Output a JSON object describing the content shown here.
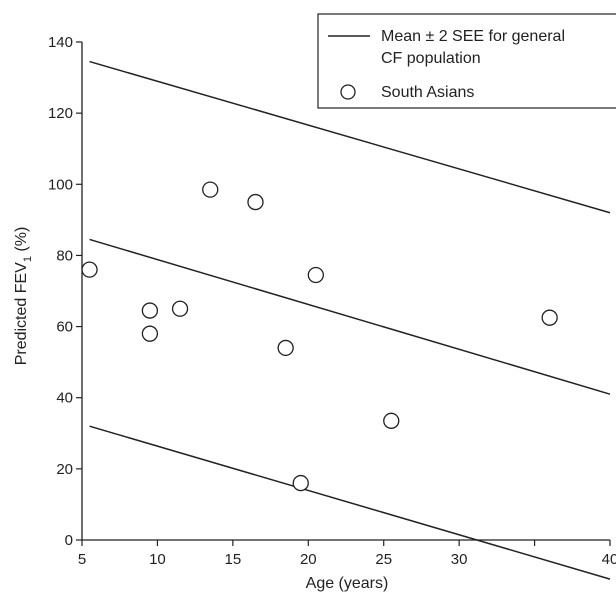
{
  "chart_data": {
    "type": "scatter",
    "xlabel": "Age (years)",
    "ylabel": "Predicted FEV",
    "ylabel_subscript": "1",
    "ylabel_suffix": " (%)",
    "xlim": [
      5,
      40
    ],
    "ylim": [
      0,
      140
    ],
    "x_ticks": [
      5,
      10,
      15,
      20,
      25,
      30,
      35,
      40
    ],
    "x_tick_labels": [
      "5",
      "10",
      "15",
      "20",
      "25",
      "30",
      "",
      "40"
    ],
    "y_ticks": [
      0,
      20,
      40,
      60,
      80,
      100,
      120,
      140
    ],
    "grid": false,
    "legend_position": "top-right",
    "legend": [
      {
        "marker": "line",
        "lines": [
          "Mean ± 2 SEE for general",
          "CF population"
        ]
      },
      {
        "marker": "circle",
        "lines": [
          "South Asians"
        ]
      }
    ],
    "series": [
      {
        "name": "Mean ± 2 SEE for general CF population",
        "kind": "lines",
        "lines": [
          {
            "label": "+2 SEE",
            "x": [
              5.5,
              40
            ],
            "y": [
              134.5,
              92
            ]
          },
          {
            "label": "mean",
            "x": [
              5.5,
              40
            ],
            "y": [
              84.5,
              41
            ]
          },
          {
            "label": "-2 SEE",
            "x": [
              5.5,
              40
            ],
            "y": [
              32,
              -11
            ]
          }
        ]
      },
      {
        "name": "South Asians",
        "kind": "points",
        "points": [
          {
            "x": 5.5,
            "y": 76
          },
          {
            "x": 9.5,
            "y": 64.5
          },
          {
            "x": 9.5,
            "y": 58
          },
          {
            "x": 11.5,
            "y": 65
          },
          {
            "x": 13.5,
            "y": 98.5
          },
          {
            "x": 16.5,
            "y": 95
          },
          {
            "x": 18.5,
            "y": 54
          },
          {
            "x": 19.5,
            "y": 16
          },
          {
            "x": 20.5,
            "y": 74.5
          },
          {
            "x": 25.5,
            "y": 33.5
          },
          {
            "x": 36,
            "y": 62.5
          }
        ]
      }
    ]
  }
}
